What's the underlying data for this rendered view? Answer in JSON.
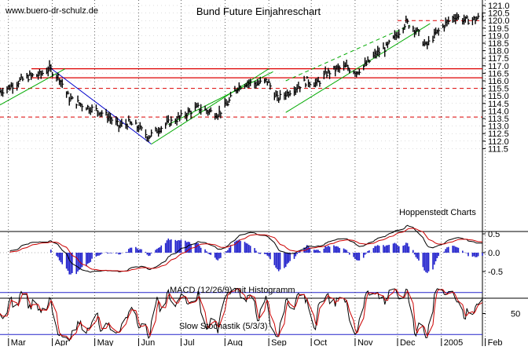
{
  "watermark": "www.buero-dr-schulz.de",
  "chart_data": [
    {
      "type": "line",
      "title": "Bund Future Einjahreschart",
      "annotation": "Hoppenstedt Charts",
      "ylim": [
        111.2,
        121.2
      ],
      "yticks": [
        "121.0",
        "120.5",
        "120.0",
        "119.5",
        "119.0",
        "118.5",
        "118.0",
        "117.5",
        "117.0",
        "116.5",
        "116.0",
        "115.5",
        "115.0",
        "114.5",
        "114.0",
        "113.5",
        "113.0",
        "112.5",
        "112.0",
        "111.5"
      ],
      "months": [
        "Mar",
        "Apr",
        "May",
        "Jun",
        "Jul",
        "Aug",
        "Sep",
        "Oct",
        "Nov",
        "Dec",
        "2005",
        "Feb"
      ],
      "closes_weekly": [
        {
          "x": "Feb-24",
          "y": 115.3
        },
        {
          "x": "Mar-02",
          "y": 115.6
        },
        {
          "x": "Mar-09",
          "y": 116.0
        },
        {
          "x": "Mar-16",
          "y": 116.3
        },
        {
          "x": "Mar-23",
          "y": 116.4
        },
        {
          "x": "Mar-30",
          "y": 116.8
        },
        {
          "x": "Apr-06",
          "y": 116.2
        },
        {
          "x": "Apr-13",
          "y": 114.8
        },
        {
          "x": "Apr-20",
          "y": 114.5
        },
        {
          "x": "Apr-27",
          "y": 114.2
        },
        {
          "x": "May-04",
          "y": 114.0
        },
        {
          "x": "May-11",
          "y": 113.6
        },
        {
          "x": "May-18",
          "y": 113.0
        },
        {
          "x": "May-25",
          "y": 113.2
        },
        {
          "x": "Jun-01",
          "y": 112.9
        },
        {
          "x": "Jun-08",
          "y": 112.3
        },
        {
          "x": "Jun-15",
          "y": 112.8
        },
        {
          "x": "Jun-22",
          "y": 113.2
        },
        {
          "x": "Jun-29",
          "y": 113.5
        },
        {
          "x": "Jul-06",
          "y": 113.9
        },
        {
          "x": "Jul-13",
          "y": 114.2
        },
        {
          "x": "Jul-20",
          "y": 114.0
        },
        {
          "x": "Jul-27",
          "y": 113.8
        },
        {
          "x": "Aug-03",
          "y": 114.5
        },
        {
          "x": "Aug-10",
          "y": 115.6
        },
        {
          "x": "Aug-17",
          "y": 115.9
        },
        {
          "x": "Aug-24",
          "y": 115.8
        },
        {
          "x": "Aug-31",
          "y": 116.0
        },
        {
          "x": "Sep-07",
          "y": 114.8
        },
        {
          "x": "Sep-14",
          "y": 115.2
        },
        {
          "x": "Sep-21",
          "y": 115.6
        },
        {
          "x": "Sep-28",
          "y": 116.0
        },
        {
          "x": "Oct-05",
          "y": 115.8
        },
        {
          "x": "Oct-12",
          "y": 116.5
        },
        {
          "x": "Oct-19",
          "y": 116.8
        },
        {
          "x": "Oct-26",
          "y": 116.9
        },
        {
          "x": "Nov-02",
          "y": 116.6
        },
        {
          "x": "Nov-09",
          "y": 117.1
        },
        {
          "x": "Nov-16",
          "y": 117.8
        },
        {
          "x": "Nov-23",
          "y": 118.2
        },
        {
          "x": "Nov-30",
          "y": 119.0
        },
        {
          "x": "Dec-07",
          "y": 119.9
        },
        {
          "x": "Dec-14",
          "y": 119.4
        },
        {
          "x": "Dec-21",
          "y": 118.3
        },
        {
          "x": "Dec-28",
          "y": 119.1
        },
        {
          "x": "Jan-04",
          "y": 119.8
        },
        {
          "x": "Jan-11",
          "y": 120.3
        },
        {
          "x": "Jan-18",
          "y": 120.0
        },
        {
          "x": "Jan-25",
          "y": 120.1
        },
        {
          "x": "Feb-01",
          "y": 120.3
        }
      ],
      "resistance_lines_solid": [
        116.8,
        116.2
      ],
      "resistance_lines_dashed": [
        120.0,
        115.5,
        113.6
      ],
      "trend_lines": [
        {
          "color": "#00aa00",
          "from": {
            "x": "Feb-24",
            "y": 114.4
          },
          "to": {
            "x": "Apr-10",
            "y": 116.8
          }
        },
        {
          "color": "#0000cc",
          "from": {
            "x": "Mar-30",
            "y": 116.9
          },
          "to": {
            "x": "Jun-10",
            "y": 111.8
          }
        },
        {
          "color": "#00aa00",
          "from": {
            "x": "Jun-10",
            "y": 111.8
          },
          "to": {
            "x": "Sep-01",
            "y": 116.8
          }
        },
        {
          "color": "#00aa00",
          "from": {
            "x": "Jun-22",
            "y": 113.1
          },
          "to": {
            "x": "Sep-04",
            "y": 116.6
          }
        },
        {
          "color": "#00aa00",
          "from": {
            "x": "Sep-13",
            "y": 113.9
          },
          "to": {
            "x": "Dec-24",
            "y": 119.8
          }
        },
        {
          "color": "#00aa00",
          "dashed": true,
          "from": {
            "x": "Sep-13",
            "y": 116.0
          },
          "to": {
            "x": "Dec-10",
            "y": 119.7
          }
        }
      ]
    },
    {
      "type": "line",
      "title": "MACD (12/26/9) mit Histogramm",
      "ylim": [
        -0.8,
        0.8
      ],
      "yticks": [
        "0.5",
        "0.0",
        "-0.5"
      ]
    },
    {
      "type": "line",
      "title": "Slow Stochastik (5/3/3)",
      "ylim": [
        0,
        100
      ],
      "yticks": [
        "50"
      ],
      "bands": [
        80,
        20
      ]
    }
  ]
}
